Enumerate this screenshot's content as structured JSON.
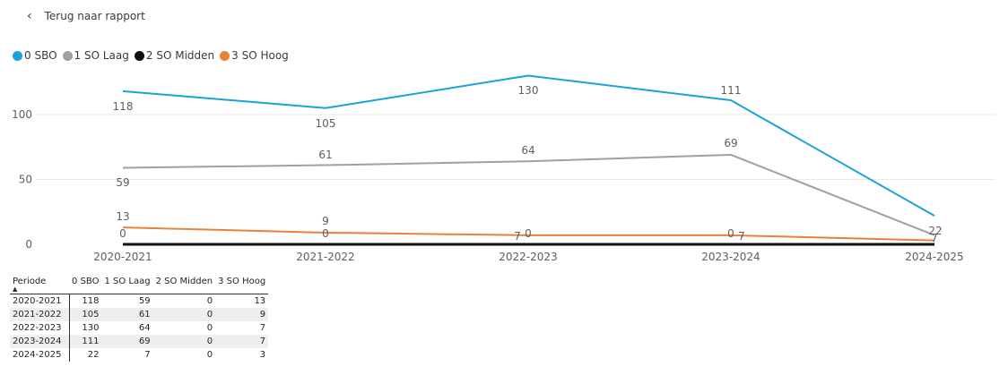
{
  "back_link": {
    "label": "Terug naar rapport"
  },
  "colors": {
    "sbo": "#1AA3DB",
    "laag": "#A0A0A0",
    "midden": "#111111",
    "hoog": "#E8823A"
  },
  "chart_data": {
    "type": "line",
    "categories": [
      "2020-2021",
      "2021-2022",
      "2022-2023",
      "2023-2024",
      "2024-2025"
    ],
    "series": [
      {
        "name": "0 SBO",
        "color": "#1AA3DB",
        "values": [
          118,
          105,
          130,
          111,
          22
        ]
      },
      {
        "name": "1 SO Laag",
        "color": "#A0A0A0",
        "values": [
          59,
          61,
          64,
          69,
          7
        ]
      },
      {
        "name": "2 SO Midden",
        "color": "#111111",
        "values": [
          0,
          0,
          0,
          0,
          0
        ]
      },
      {
        "name": "3 SO Hoog",
        "color": "#E8823A",
        "values": [
          13,
          9,
          7,
          7,
          3
        ]
      }
    ],
    "yticks": [
      0,
      50,
      100
    ],
    "ylim": [
      0,
      130
    ],
    "legend": "top-left",
    "grid": true
  },
  "table": {
    "headers": [
      "Periode",
      "0 SBO",
      "1 SO Laag",
      "2 SO Midden",
      "3 SO Hoog"
    ],
    "rows": [
      [
        "2020-2021",
        "118",
        "59",
        "0",
        "13"
      ],
      [
        "2021-2022",
        "105",
        "61",
        "0",
        "9"
      ],
      [
        "2022-2023",
        "130",
        "64",
        "0",
        "7"
      ],
      [
        "2023-2024",
        "111",
        "69",
        "0",
        "7"
      ],
      [
        "2024-2025",
        "22",
        "7",
        "0",
        "3"
      ]
    ]
  }
}
